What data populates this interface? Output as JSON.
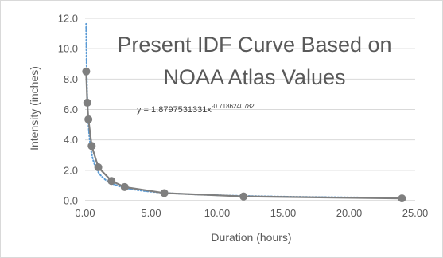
{
  "chart_data": {
    "type": "scatter",
    "title_lines": [
      "Present IDF Curve Based on",
      "NOAA Atlas Values"
    ],
    "xlabel": "Duration (hours)",
    "ylabel": "Intensity (inches)",
    "xlim": [
      0,
      25
    ],
    "ylim": [
      0,
      12
    ],
    "x_ticks": [
      0,
      5,
      10,
      15,
      20,
      25
    ],
    "x_tick_labels": [
      "0.00",
      "5.00",
      "10.00",
      "15.00",
      "20.00",
      "25.00"
    ],
    "y_ticks": [
      0,
      2,
      4,
      6,
      8,
      10,
      12
    ],
    "y_tick_labels": [
      "0.0",
      "2.0",
      "4.0",
      "6.0",
      "8.0",
      "10.0",
      "12.0"
    ],
    "grid": "horizontal",
    "series": [
      {
        "x": [
          0.083,
          0.167,
          0.25,
          0.5,
          1,
          2,
          3,
          6,
          12,
          24
        ],
        "y": [
          8.5,
          6.45,
          5.35,
          3.6,
          2.2,
          1.3,
          0.9,
          0.5,
          0.28,
          0.15
        ],
        "color": "#7f7f7f"
      }
    ],
    "trendline": {
      "type": "power",
      "coefficient": 1.8797531331,
      "exponent": -0.7186240782,
      "color": "#5b9bd5",
      "equation_base": "y = 1.8797531331x",
      "equation_exponent": "-0.7186240782"
    }
  }
}
